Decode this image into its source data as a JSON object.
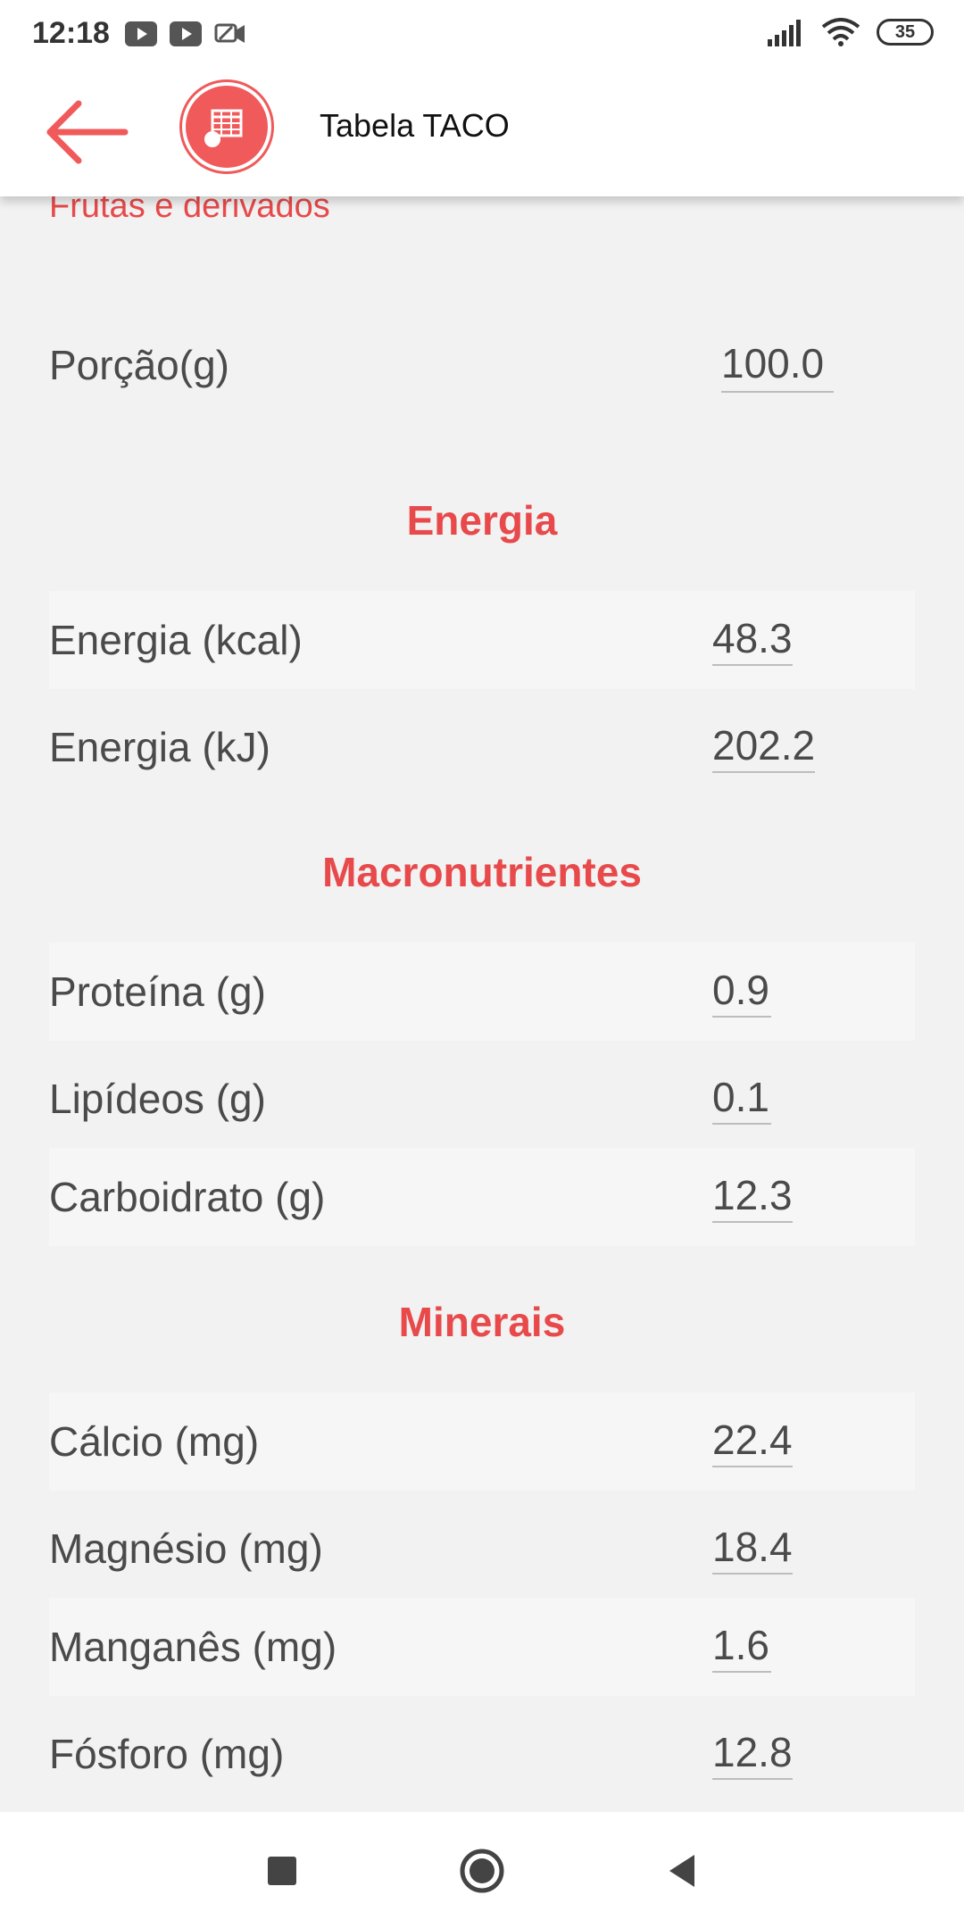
{
  "status_bar": {
    "time": "12:18",
    "battery": "35"
  },
  "app_bar": {
    "title": "Tabela TACO"
  },
  "category": "Frutas e derivados",
  "portion": {
    "label": "Porção(g)",
    "value": "100.0"
  },
  "sections": {
    "energia": {
      "title": "Energia",
      "rows": [
        {
          "label": "Energia (kcal)",
          "value": "48.3"
        },
        {
          "label": "Energia (kJ)",
          "value": "202.2"
        }
      ]
    },
    "macro": {
      "title": "Macronutrientes",
      "rows": [
        {
          "label": "Proteína (g)",
          "value": "0.9"
        },
        {
          "label": "Lipídeos (g)",
          "value": "0.1"
        },
        {
          "label": "Carboidrato (g)",
          "value": "12.3"
        }
      ]
    },
    "minerais": {
      "title": "Minerais",
      "rows": [
        {
          "label": "Cálcio (mg)",
          "value": "22.4"
        },
        {
          "label": "Magnésio (mg)",
          "value": "18.4"
        },
        {
          "label": "Manganês (mg)",
          "value": "1.6"
        },
        {
          "label": "Fósforo (mg)",
          "value": "12.8"
        }
      ]
    }
  },
  "icons": {
    "back": "arrow-left-icon",
    "logo": "table-icon",
    "nav_recents": "square-icon",
    "nav_home": "circle-icon",
    "nav_back": "triangle-icon"
  },
  "colors": {
    "accent": "#e8494b",
    "logo": "#f05a5a",
    "background": "#f2f2f2",
    "text": "#4a4a4a"
  }
}
